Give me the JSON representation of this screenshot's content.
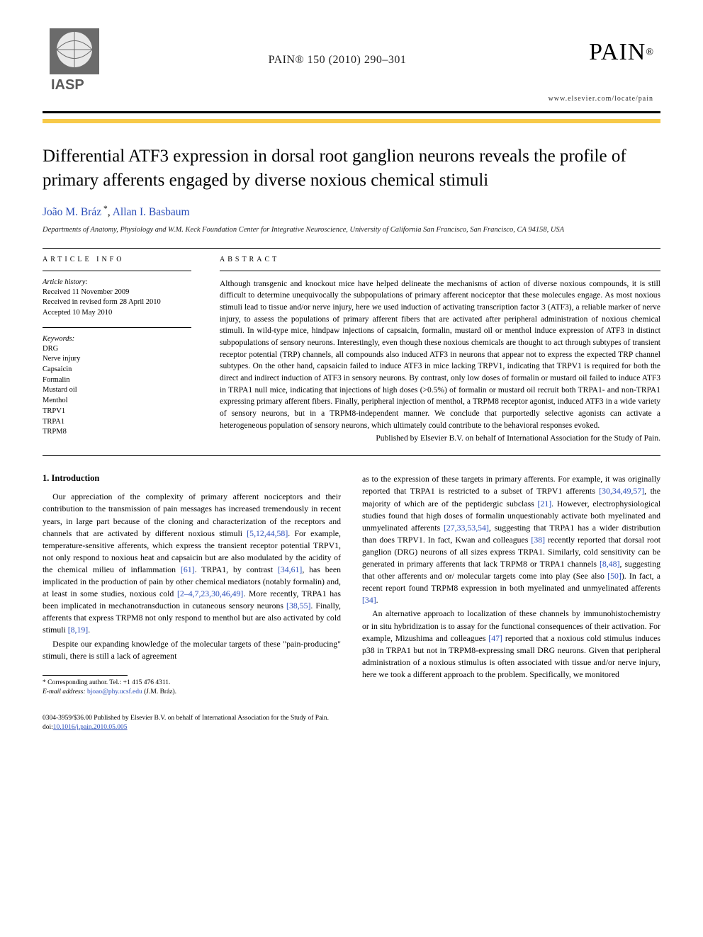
{
  "journal": {
    "citation": "PAIN® 150 (2010) 290–301",
    "url": "www.elsevier.com/locate/pain",
    "left_logo_label": "IASP",
    "right_logo_word": "PAIN",
    "right_logo_reg": "®"
  },
  "colors": {
    "accent_bar": "#f7c948",
    "link": "#2a4db8",
    "text": "#000000",
    "background": "#ffffff",
    "rule": "#000000"
  },
  "article": {
    "title": "Differential ATF3 expression in dorsal root ganglion neurons reveals the profile of primary afferents engaged by diverse noxious chemical stimuli",
    "authors_html": "João M. Bráz *, Allan I. Basbaum",
    "authors": [
      {
        "name": "João M. Bráz",
        "corresponding": true
      },
      {
        "name": "Allan I. Basbaum",
        "corresponding": false
      }
    ],
    "affiliation": "Departments of Anatomy, Physiology and W.M. Keck Foundation Center for Integrative Neuroscience, University of California San Francisco, San Francisco, CA 94158, USA"
  },
  "article_info": {
    "label": "ARTICLE INFO",
    "history_label": "Article history:",
    "history": [
      "Received 11 November 2009",
      "Received in revised form 28 April 2010",
      "Accepted 10 May 2010"
    ],
    "keywords_label": "Keywords:",
    "keywords": [
      "DRG",
      "Nerve injury",
      "Capsaicin",
      "Formalin",
      "Mustard oil",
      "Menthol",
      "TRPV1",
      "TRPA1",
      "TRPM8"
    ]
  },
  "abstract": {
    "label": "ABSTRACT",
    "text": "Although transgenic and knockout mice have helped delineate the mechanisms of action of diverse noxious compounds, it is still difficult to determine unequivocally the subpopulations of primary afferent nociceptor that these molecules engage. As most noxious stimuli lead to tissue and/or nerve injury, here we used induction of activating transcription factor 3 (ATF3), a reliable marker of nerve injury, to assess the populations of primary afferent fibers that are activated after peripheral administration of noxious chemical stimuli. In wild-type mice, hindpaw injections of capsaicin, formalin, mustard oil or menthol induce expression of ATF3 in distinct subpopulations of sensory neurons. Interestingly, even though these noxious chemicals are thought to act through subtypes of transient receptor potential (TRP) channels, all compounds also induced ATF3 in neurons that appear not to express the expected TRP channel subtypes. On the other hand, capsaicin failed to induce ATF3 in mice lacking TRPV1, indicating that TRPV1 is required for both the direct and indirect induction of ATF3 in sensory neurons. By contrast, only low doses of formalin or mustard oil failed to induce ATF3 in TRPA1 null mice, indicating that injections of high doses (>0.5%) of formalin or mustard oil recruit both TRPA1- and non-TRPA1 expressing primary afferent fibers. Finally, peripheral injection of menthol, a TRPM8 receptor agonist, induced ATF3 in a wide variety of sensory neurons, but in a TRPM8-independent manner. We conclude that purportedly selective agonists can activate a heterogeneous population of sensory neurons, which ultimately could contribute to the behavioral responses evoked.",
    "publisher_line": "Published by Elsevier B.V. on behalf of International Association for the Study of Pain."
  },
  "body": {
    "section1_heading": "1. Introduction",
    "col_left": [
      "Our appreciation of the complexity of primary afferent nociceptors and their contribution to the transmission of pain messages has increased tremendously in recent years, in large part because of the cloning and characterization of the receptors and channels that are activated by different noxious stimuli [5,12,44,58]. For example, temperature-sensitive afferents, which express the transient receptor potential TRPV1, not only respond to noxious heat and capsaicin but are also modulated by the acidity of the chemical milieu of inflammation [61]. TRPA1, by contrast [34,61], has been implicated in the production of pain by other chemical mediators (notably formalin) and, at least in some studies, noxious cold [2–4,7,23,30,46,49]. More recently, TRPA1 has been implicated in mechanotransduction in cutaneous sensory neurons [38,55]. Finally, afferents that express TRPM8 not only respond to menthol but are also activated by cold stimuli [8,19].",
      "Despite our expanding knowledge of the molecular targets of these \"pain-producing\" stimuli, there is still a lack of agreement"
    ],
    "col_right": [
      "as to the expression of these targets in primary afferents. For example, it was originally reported that TRPA1 is restricted to a subset of TRPV1 afferents [30,34,49,57], the majority of which are of the peptidergic subclass [21]. However, electrophysiological studies found that high doses of formalin unquestionably activate both myelinated and unmyelinated afferents [27,33,53,54], suggesting that TRPA1 has a wider distribution than does TRPV1. In fact, Kwan and colleagues [38] recently reported that dorsal root ganglion (DRG) neurons of all sizes express TRPA1. Similarly, cold sensitivity can be generated in primary afferents that lack TRPM8 or TRPA1 channels [8,48], suggesting that other afferents and or/ molecular targets come into play (See also [50]). In fact, a recent report found TRPM8 expression in both myelinated and unmyelinated afferents [34].",
      "An alternative approach to localization of these channels by immunohistochemistry or in situ hybridization is to assay for the functional consequences of their activation. For example, Mizushima and colleagues [47] reported that a noxious cold stimulus induces p38 in TRPA1 but not in TRPM8-expressing small DRG neurons. Given that peripheral administration of a noxious stimulus is often associated with tissue and/or nerve injury, here we took a different approach to the problem. Specifically, we monitored"
    ]
  },
  "footnote": {
    "corr_label": "* Corresponding author. Tel.: +1 415 476 4311.",
    "email_label": "E-mail address:",
    "email": "bjoao@phy.ucsf.edu",
    "email_who": "(J.M. Bráz)."
  },
  "bottom": {
    "copyright": "0304-3959/$36.00  Published by Elsevier B.V. on behalf of International Association for the Study of Pain.",
    "doi_prefix": "doi:",
    "doi": "10.1016/j.pain.2010.05.005"
  },
  "typography": {
    "title_fontsize_pt": 19,
    "authors_fontsize_pt": 12,
    "affil_fontsize_pt": 8,
    "abstract_fontsize_pt": 8.8,
    "body_fontsize_pt": 9,
    "footnote_fontsize_pt": 7.3,
    "font_family": "Times / serif"
  }
}
